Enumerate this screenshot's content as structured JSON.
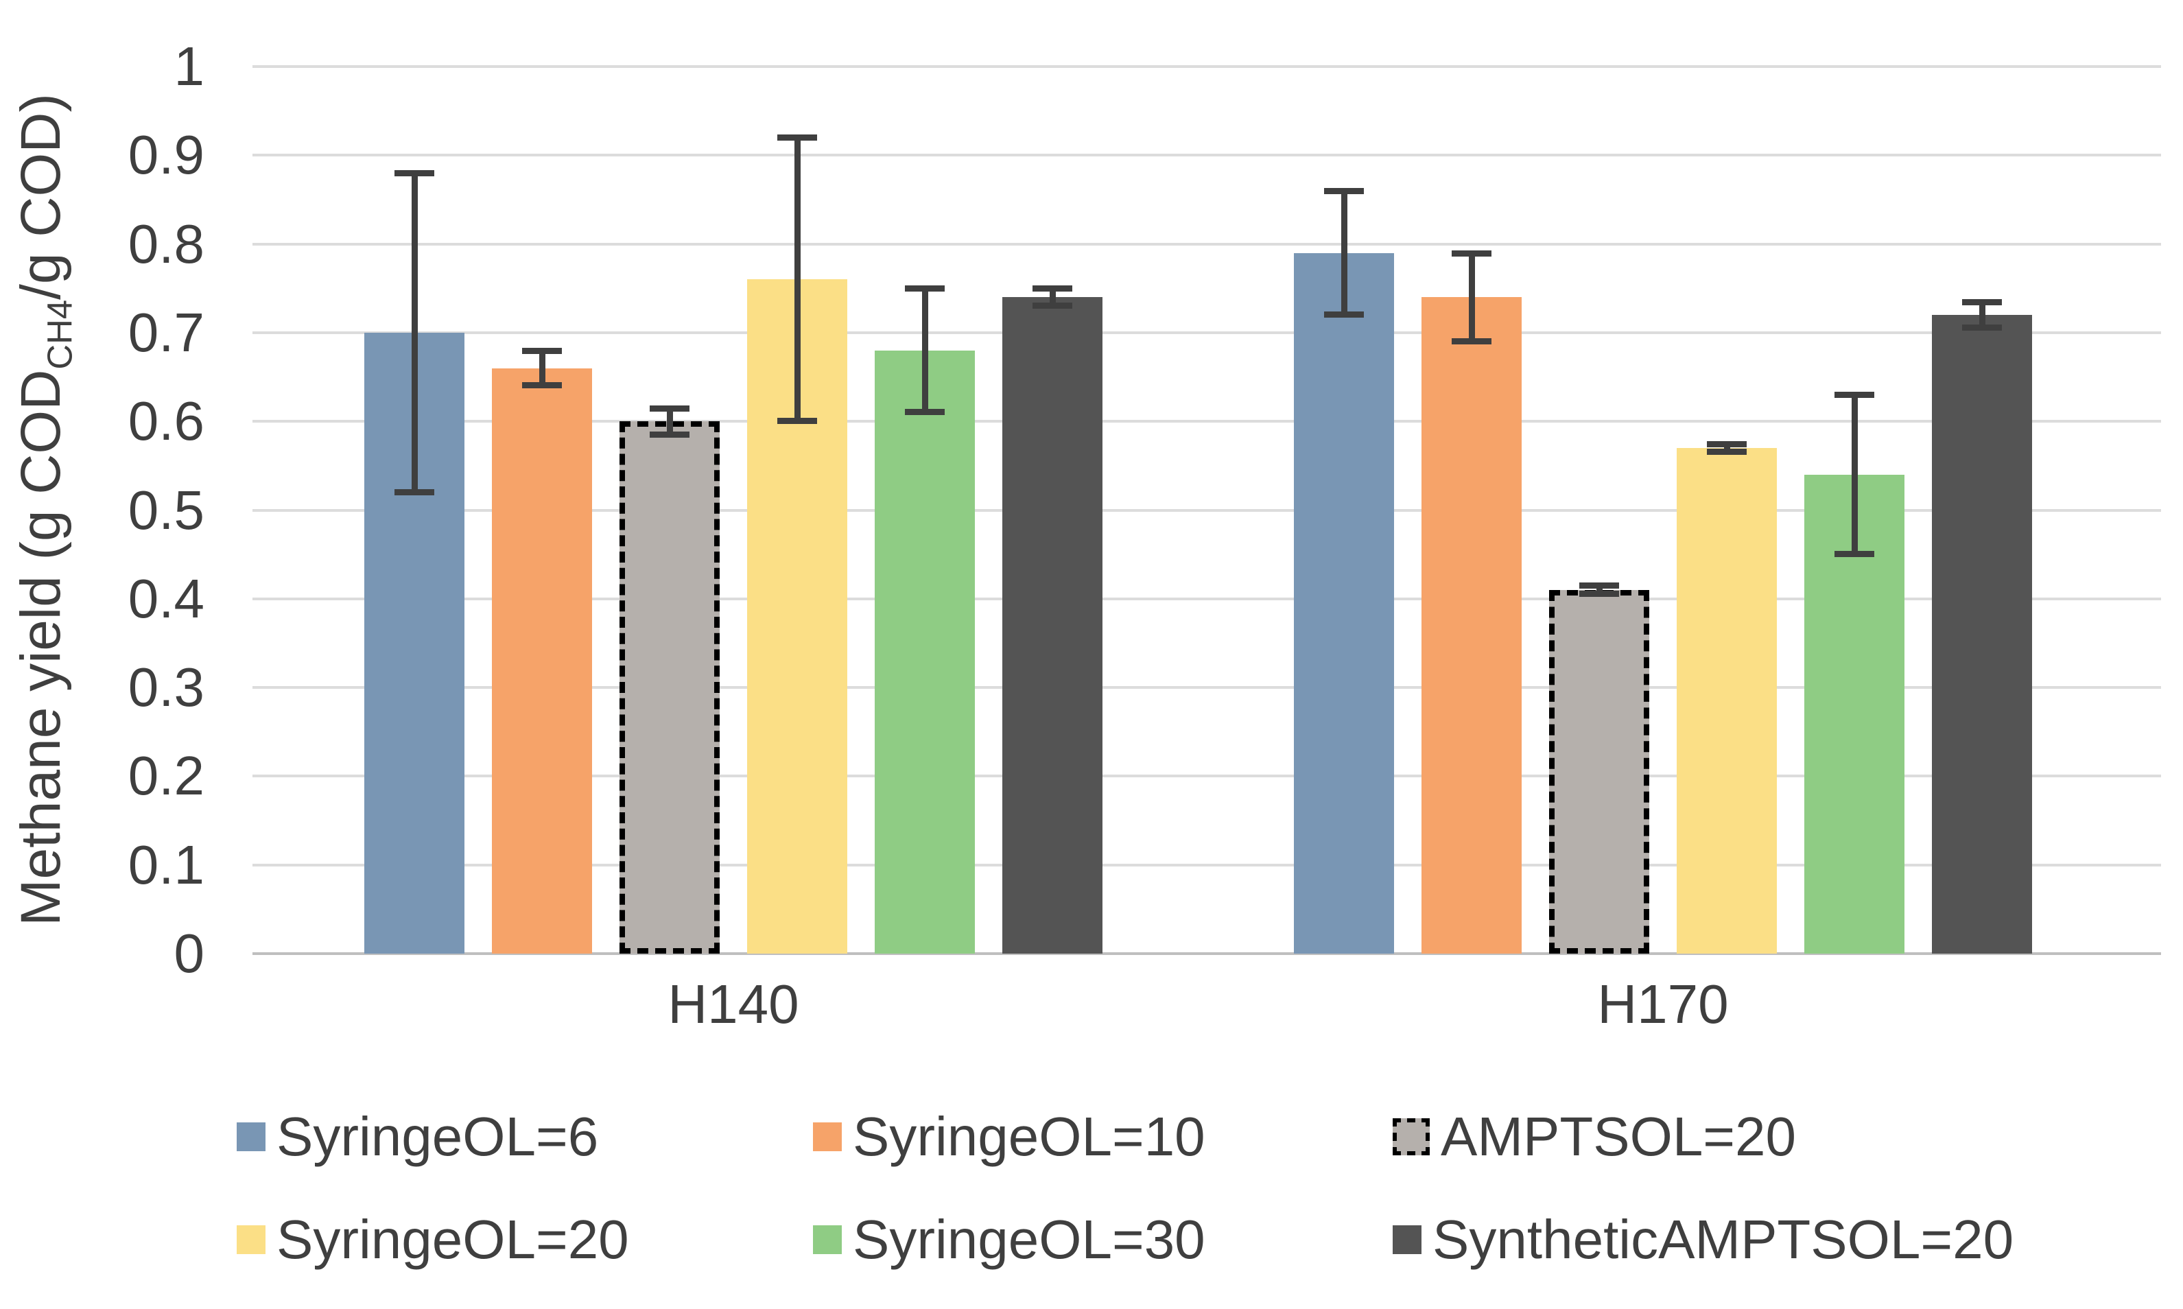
{
  "colors": {
    "background": "#ffffff",
    "gridline": "#dcdcdc",
    "axis_line": "#bfbfbf",
    "text": "#3f3f3f",
    "error_bar": "#3f3f3f",
    "dashed_bar_border": "#000000"
  },
  "chart_data": {
    "type": "bar",
    "title": "",
    "ylabel_pre": "Methane yield (g COD",
    "ylabel_sub": "CH4",
    "ylabel_post": "/g COD)",
    "xlabel": "",
    "categories": [
      "H140",
      "H170"
    ],
    "ylim": [
      0,
      1
    ],
    "ytick_step": 0.1,
    "yticks": [
      "0",
      "0.1",
      "0.2",
      "0.3",
      "0.4",
      "0.5",
      "0.6",
      "0.7",
      "0.8",
      "0.9",
      "1"
    ],
    "grid": true,
    "legend_position": "bottom",
    "legend_columns": 3,
    "series": [
      {
        "name": "SyringeOL=6",
        "color": "#7996b4",
        "border_style": "none",
        "values": [
          0.7,
          0.79
        ],
        "error_low": [
          0.52,
          0.72
        ],
        "error_high": [
          0.88,
          0.86
        ]
      },
      {
        "name": "SyringeOL=10",
        "color": "#f6a369",
        "border_style": "none",
        "values": [
          0.66,
          0.74
        ],
        "error_low": [
          0.64,
          0.69
        ],
        "error_high": [
          0.68,
          0.79
        ]
      },
      {
        "name": "AMPTSOL=20",
        "color": "#b5b0ac",
        "border_style": "dashed-black",
        "values": [
          0.6,
          0.41
        ],
        "error_low": [
          0.585,
          0.405
        ],
        "error_high": [
          0.615,
          0.415
        ]
      },
      {
        "name": "SyringeOL=20",
        "color": "#fbdf86",
        "border_style": "none",
        "values": [
          0.76,
          0.57
        ],
        "error_low": [
          0.6,
          0.565
        ],
        "error_high": [
          0.92,
          0.575
        ]
      },
      {
        "name": "SyringeOL=30",
        "color": "#8fcc84",
        "border_style": "none",
        "values": [
          0.68,
          0.54
        ],
        "error_low": [
          0.61,
          0.45
        ],
        "error_high": [
          0.75,
          0.63
        ]
      },
      {
        "name": "SyntheticAMPTSOL=20",
        "color": "#545454",
        "border_style": "none",
        "values": [
          0.74,
          0.72
        ],
        "error_low": [
          0.73,
          0.705
        ],
        "error_high": [
          0.75,
          0.735
        ]
      }
    ]
  }
}
